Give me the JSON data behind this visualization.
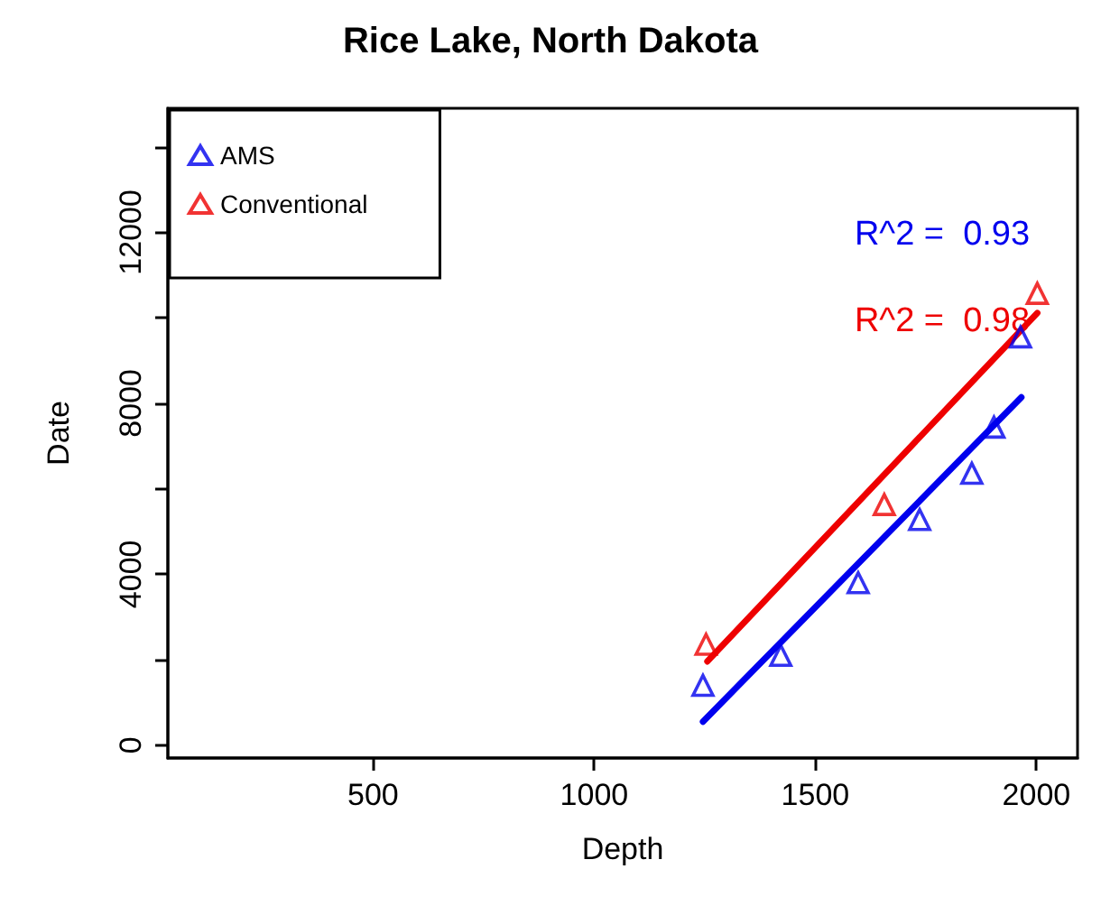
{
  "chart_data": {
    "type": "scatter",
    "title": "Rice Lake, North Dakota",
    "xlabel": "Depth",
    "ylabel": "Date",
    "xlim": [
      36,
      2093
    ],
    "xticks": [
      500,
      1000,
      1500,
      2000
    ],
    "ylim": [
      -300,
      14900
    ],
    "yticks": [
      0,
      {
        "value": 2000,
        "label": null
      },
      4000,
      {
        "value": 6000,
        "label": null
      },
      8000,
      {
        "value": 10000,
        "label": null
      },
      12000,
      {
        "value": 14000,
        "label": null
      }
    ],
    "grid": false,
    "legend": "top left",
    "marker": "triangle",
    "series": [
      {
        "name": "AMS",
        "color": "#0000ee",
        "x": [
          1246,
          1422,
          1597,
          1736,
          1854,
          1904,
          1964
        ],
        "values": [
          1400,
          2100,
          3800,
          5280,
          6360,
          7440,
          9550
        ]
      },
      {
        "name": "Conventional",
        "color": "#ee0000",
        "x": [
          1253,
          1656,
          2002
        ],
        "values": [
          2360,
          5630,
          10570
        ]
      },
      {
        "type": "line",
        "color": "#0000ee",
        "marker": "none",
        "line_style": "solid",
        "x": [
          1246,
          1966
        ],
        "values": [
          550,
          8140
        ]
      },
      {
        "type": "line",
        "color": "#ee0000",
        "marker": "none",
        "line_style": "solid",
        "x": [
          1256,
          2002
        ],
        "values": [
          1960,
          10110
        ]
      }
    ],
    "annotations": [
      "R^2 =  0.93",
      "R^2 =  0.98"
    ]
  }
}
